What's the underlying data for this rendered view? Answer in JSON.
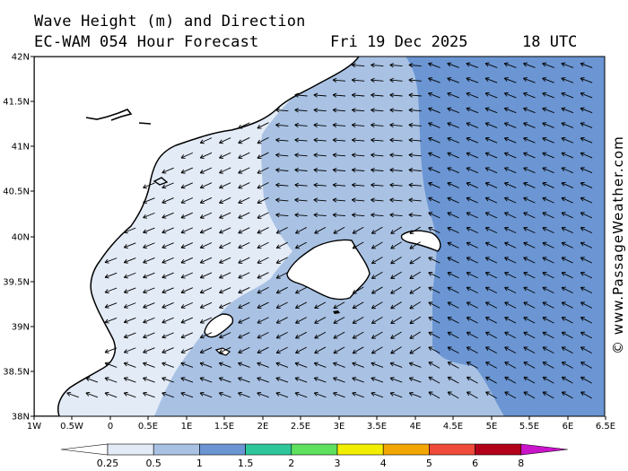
{
  "title_line1": "Wave Height (m) and Direction",
  "title_line2": "EC-WAM 054 Hour Forecast",
  "date": "Fri 19 Dec 2025",
  "time": "18 UTC",
  "credit": "© www.PassageWeather.com",
  "lat_ticks": [
    "42N",
    "41.5N",
    "41N",
    "40.5N",
    "40N",
    "39.5N",
    "39N",
    "38.5N",
    "38N"
  ],
  "lon_ticks": [
    "1W",
    "0.5W",
    "0",
    "0.5E",
    "1E",
    "1.5E",
    "2E",
    "2.5E",
    "3E",
    "3.5E",
    "4E",
    "4.5E",
    "5E",
    "5.5E",
    "6E",
    "6.5E"
  ],
  "legend": {
    "labels": [
      "0.25",
      "0.5",
      "1",
      "1.5",
      "2",
      "3",
      "4",
      "5",
      "6",
      "8"
    ],
    "colors": [
      "#ffffff",
      "#e3ebf7",
      "#a9c2e4",
      "#6b96d3",
      "#2ec79c",
      "#5fe05f",
      "#f2ee00",
      "#f2a600",
      "#ef4a3a",
      "#b2001a",
      "#c914c9"
    ]
  },
  "wave_colors": {
    "band1": "#e3ebf7",
    "band2": "#a9c2e4",
    "band3": "#6b96d3",
    "land": "#ffffff"
  }
}
